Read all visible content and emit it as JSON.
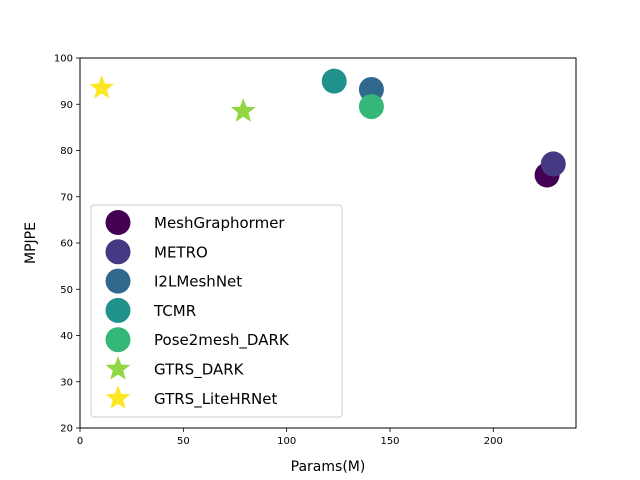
{
  "chart_data": {
    "type": "scatter",
    "xlabel": "Params(M)",
    "ylabel": "MPJPE",
    "xlim": [
      0,
      240
    ],
    "ylim": [
      20,
      100
    ],
    "xticks": [
      0,
      50,
      100,
      150,
      200
    ],
    "yticks": [
      20,
      30,
      40,
      50,
      60,
      70,
      80,
      90,
      100
    ],
    "grid": false,
    "legend_position": "lower-left",
    "series": [
      {
        "name": "MeshGraphormer",
        "marker": "circle",
        "color": "#440154",
        "points": [
          {
            "x": 226,
            "y": 74.7
          }
        ]
      },
      {
        "name": "METRO",
        "marker": "circle",
        "color": "#443983",
        "points": [
          {
            "x": 229,
            "y": 77.1
          }
        ]
      },
      {
        "name": "I2LMeshNet",
        "marker": "circle",
        "color": "#31688e",
        "points": [
          {
            "x": 141,
            "y": 93.2
          }
        ]
      },
      {
        "name": "TCMR",
        "marker": "circle",
        "color": "#21918c",
        "points": [
          {
            "x": 123,
            "y": 95.0
          }
        ]
      },
      {
        "name": "Pose2mesh_DARK",
        "marker": "circle",
        "color": "#35b779",
        "points": [
          {
            "x": 141,
            "y": 89.5
          }
        ]
      },
      {
        "name": "GTRS_DARK",
        "marker": "star",
        "color": "#90d743",
        "points": [
          {
            "x": 79,
            "y": 88.5
          }
        ]
      },
      {
        "name": "GTRS_LiteHRNet",
        "marker": "star",
        "color": "#fde725",
        "points": [
          {
            "x": 10.5,
            "y": 93.5
          }
        ]
      }
    ]
  }
}
